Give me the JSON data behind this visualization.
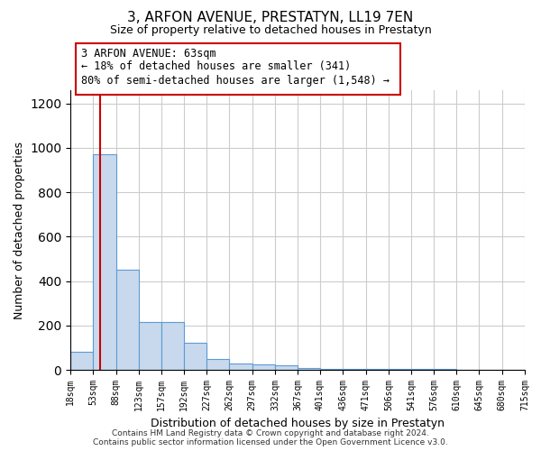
{
  "title": "3, ARFON AVENUE, PRESTATYN, LL19 7EN",
  "subtitle": "Size of property relative to detached houses in Prestatyn",
  "xlabel": "Distribution of detached houses by size in Prestatyn",
  "ylabel": "Number of detached properties",
  "bar_color": "#c8d9ee",
  "bar_edge_color": "#5b9bd5",
  "bin_edges": [
    18,
    53,
    88,
    123,
    157,
    192,
    227,
    262,
    297,
    332,
    367,
    401,
    436,
    471,
    506,
    541,
    576,
    610,
    645,
    680,
    715
  ],
  "bar_heights": [
    80,
    970,
    450,
    215,
    215,
    120,
    50,
    30,
    25,
    20,
    10,
    5,
    5,
    5,
    5,
    3,
    3,
    2,
    1,
    1
  ],
  "ylim": [
    0,
    1260
  ],
  "yticks": [
    0,
    200,
    400,
    600,
    800,
    1000,
    1200
  ],
  "property_size": 63,
  "red_line_color": "#cc0000",
  "annotation_text": "3 ARFON AVENUE: 63sqm\n← 18% of detached houses are smaller (341)\n80% of semi-detached houses are larger (1,548) →",
  "annotation_box_color": "#ffffff",
  "annotation_border_color": "#cc0000",
  "footer_text": "Contains HM Land Registry data © Crown copyright and database right 2024.\nContains public sector information licensed under the Open Government Licence v3.0.",
  "x_tick_labels": [
    "18sqm",
    "53sqm",
    "88sqm",
    "123sqm",
    "157sqm",
    "192sqm",
    "227sqm",
    "262sqm",
    "297sqm",
    "332sqm",
    "367sqm",
    "401sqm",
    "436sqm",
    "471sqm",
    "506sqm",
    "541sqm",
    "576sqm",
    "610sqm",
    "645sqm",
    "680sqm",
    "715sqm"
  ],
  "background_color": "#ffffff",
  "grid_color": "#cccccc"
}
